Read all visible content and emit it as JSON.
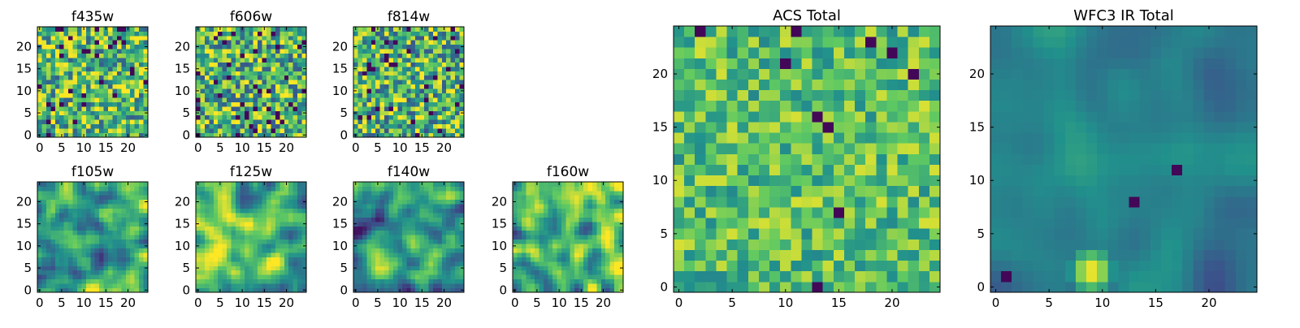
{
  "colormap": {
    "name": "viridis",
    "stops": [
      "#440154",
      "#3b528b",
      "#21918c",
      "#5ec962",
      "#fde725"
    ]
  },
  "chart_data": [
    {
      "type": "heatmap",
      "title": "f435w",
      "xlabel": "",
      "ylabel": "",
      "grid": false,
      "xlim": [
        0,
        24
      ],
      "ylim": [
        0,
        24
      ],
      "size": 25,
      "xticks": [
        0,
        5,
        10,
        15,
        20
      ],
      "yticks": [
        0,
        5,
        10,
        15,
        20
      ],
      "value_range": [
        0,
        1
      ],
      "pattern": "noise",
      "base": 0.68,
      "spread": 0.38,
      "dark_fraction": 0.05,
      "seed": 11
    },
    {
      "type": "heatmap",
      "title": "f606w",
      "xlabel": "",
      "ylabel": "",
      "grid": false,
      "xlim": [
        0,
        24
      ],
      "ylim": [
        0,
        24
      ],
      "size": 25,
      "xticks": [
        0,
        5,
        10,
        15,
        20
      ],
      "yticks": [
        0,
        5,
        10,
        15,
        20
      ],
      "value_range": [
        0,
        1
      ],
      "pattern": "noise",
      "base": 0.66,
      "spread": 0.4,
      "dark_fraction": 0.06,
      "seed": 23
    },
    {
      "type": "heatmap",
      "title": "f814w",
      "xlabel": "",
      "ylabel": "",
      "grid": false,
      "xlim": [
        0,
        24
      ],
      "ylim": [
        0,
        24
      ],
      "size": 25,
      "xticks": [
        0,
        5,
        10,
        15,
        20
      ],
      "yticks": [
        0,
        5,
        10,
        15,
        20
      ],
      "value_range": [
        0,
        1
      ],
      "pattern": "noise",
      "base": 0.65,
      "spread": 0.4,
      "dark_fraction": 0.06,
      "seed": 37
    },
    {
      "type": "heatmap",
      "title": "f105w",
      "xlabel": "",
      "ylabel": "",
      "grid": false,
      "xlim": [
        0,
        24
      ],
      "ylim": [
        0,
        24
      ],
      "size": 25,
      "xticks": [
        0,
        5,
        10,
        15,
        20
      ],
      "yticks": [
        0,
        5,
        10,
        15,
        20
      ],
      "value_range": [
        0,
        1
      ],
      "pattern": "smooth",
      "base": 0.62,
      "spread": 0.45,
      "dark_fraction": 0.0,
      "seed": 41
    },
    {
      "type": "heatmap",
      "title": "f125w",
      "xlabel": "",
      "ylabel": "",
      "grid": false,
      "xlim": [
        0,
        24
      ],
      "ylim": [
        0,
        24
      ],
      "size": 25,
      "xticks": [
        0,
        5,
        10,
        15,
        20
      ],
      "yticks": [
        0,
        5,
        10,
        15,
        20
      ],
      "value_range": [
        0,
        1
      ],
      "pattern": "smooth",
      "base": 0.68,
      "spread": 0.45,
      "dark_fraction": 0.0,
      "seed": 53
    },
    {
      "type": "heatmap",
      "title": "f140w",
      "xlabel": "",
      "ylabel": "",
      "grid": false,
      "xlim": [
        0,
        24
      ],
      "ylim": [
        0,
        24
      ],
      "size": 25,
      "xticks": [
        0,
        5,
        10,
        15,
        20
      ],
      "yticks": [
        0,
        5,
        10,
        15,
        20
      ],
      "value_range": [
        0,
        1
      ],
      "pattern": "smooth",
      "base": 0.5,
      "spread": 0.45,
      "dark_fraction": 0.0,
      "seed": 67
    },
    {
      "type": "heatmap",
      "title": "f160w",
      "xlabel": "",
      "ylabel": "",
      "grid": false,
      "xlim": [
        0,
        24
      ],
      "ylim": [
        0,
        24
      ],
      "size": 25,
      "xticks": [
        0,
        5,
        10,
        15,
        20
      ],
      "yticks": [
        0,
        5,
        10,
        15,
        20
      ],
      "value_range": [
        0,
        1
      ],
      "pattern": "smooth",
      "base": 0.66,
      "spread": 0.48,
      "dark_fraction": 0.0,
      "seed": 79
    },
    {
      "type": "heatmap",
      "title": "ACS Total",
      "xlabel": "",
      "ylabel": "",
      "grid": false,
      "xlim": [
        0,
        24
      ],
      "ylim": [
        0,
        24
      ],
      "size": 25,
      "xticks": [
        0,
        5,
        10,
        15,
        20
      ],
      "yticks": [
        0,
        5,
        10,
        15,
        20
      ],
      "value_range": [
        0,
        1
      ],
      "pattern": "noise",
      "base": 0.7,
      "spread": 0.24,
      "dark_fraction": 0.025,
      "seed": 97
    },
    {
      "type": "heatmap",
      "title": "WFC3 IR Total",
      "xlabel": "",
      "ylabel": "",
      "grid": false,
      "xlim": [
        0,
        24
      ],
      "ylim": [
        0,
        24
      ],
      "size": 25,
      "xticks": [
        0,
        5,
        10,
        15,
        20
      ],
      "yticks": [
        0,
        5,
        10,
        15,
        20
      ],
      "value_range": [
        0,
        1
      ],
      "pattern": "blob",
      "base": 0.4,
      "spread": 0.16,
      "dark_fraction": 0.015,
      "seed": 131,
      "feature": {
        "x": 9,
        "y": 1.5,
        "peak": 1.0
      }
    }
  ]
}
